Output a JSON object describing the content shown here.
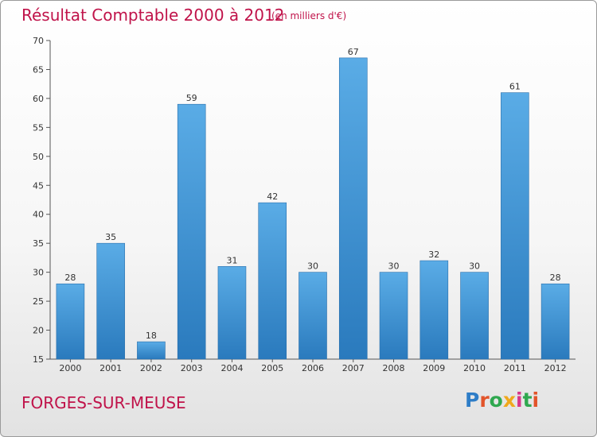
{
  "header": {
    "title": "Résultat Comptable 2000 à 2012",
    "subtitle": "(en milliers d'€)"
  },
  "footer": {
    "commune": "FORGES-SUR-MEUSE",
    "logo_letters": [
      "P",
      "r",
      "o",
      "x",
      "i",
      "t",
      "i"
    ]
  },
  "colors": {
    "title": "#c0134a",
    "bar_light": "#5aace6",
    "bar_dark": "#2a7abd"
  },
  "chart_data": {
    "type": "bar",
    "title": "Résultat Comptable 2000 à 2012",
    "xlabel": "",
    "ylabel": "",
    "categories": [
      "2000",
      "2001",
      "2002",
      "2003",
      "2004",
      "2005",
      "2006",
      "2007",
      "2008",
      "2009",
      "2010",
      "2011",
      "2012"
    ],
    "values": [
      28,
      35,
      18,
      59,
      31,
      42,
      30,
      67,
      30,
      32,
      30,
      61,
      28
    ],
    "ylim": [
      15,
      70
    ],
    "yticks": [
      15,
      20,
      25,
      30,
      35,
      40,
      45,
      50,
      55,
      60,
      65,
      70
    ],
    "grid": false,
    "legend": "none"
  }
}
